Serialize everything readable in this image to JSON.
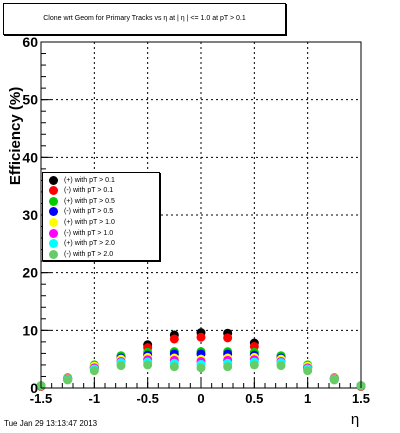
{
  "title": "Clone wrt Geom for Primary Tracks vs    η at |   η | <= 1.0 at pT > 0.1",
  "timestamp": "Tue Jan 29 13:13:47 2013",
  "chart_data": {
    "type": "scatter",
    "xlabel": "η",
    "ylabel": "Efficiency (%)",
    "xlim": [
      -1.5,
      1.5
    ],
    "ylim": [
      0,
      60
    ],
    "x_ticks": [
      -1.5,
      -1,
      -0.5,
      0,
      0.5,
      1,
      1.5
    ],
    "x_tick_labels": [
      "-1.5",
      "-1",
      "-0.5",
      "0",
      "0.5",
      "1",
      "1.5"
    ],
    "y_ticks": [
      0,
      10,
      20,
      30,
      40,
      50,
      60
    ],
    "y_tick_labels": [
      "0",
      "10",
      "20",
      "30",
      "40",
      "50",
      "60"
    ],
    "grid": true,
    "legend_position": "left-middle",
    "x": [
      -1.5,
      -1.25,
      -1.0,
      -0.75,
      -0.5,
      -0.25,
      0.0,
      0.25,
      0.5,
      0.75,
      1.0,
      1.25,
      1.5
    ],
    "series": [
      {
        "name": "(+) with pT > 0.1",
        "color": "#000000",
        "values": [
          0.3,
          1.6,
          3.6,
          5.4,
          7.5,
          9.2,
          9.6,
          9.5,
          7.8,
          5.5,
          3.6,
          1.6,
          0.3
        ]
      },
      {
        "name": "(-) with pT > 0.1",
        "color": "#ff0000",
        "values": [
          0.3,
          1.5,
          3.4,
          5.1,
          7.0,
          8.5,
          8.8,
          8.7,
          7.2,
          5.1,
          3.4,
          1.5,
          0.3
        ]
      },
      {
        "name": "(+) with pT > 0.5",
        "color": "#00cc00",
        "values": [
          0.4,
          1.8,
          4.0,
          5.6,
          6.2,
          6.3,
          6.3,
          6.3,
          6.2,
          5.6,
          4.0,
          1.8,
          0.4
        ]
      },
      {
        "name": "(-) with pT > 0.5",
        "color": "#0000ff",
        "values": [
          0.4,
          1.7,
          3.7,
          5.2,
          5.7,
          5.9,
          5.9,
          5.9,
          5.7,
          5.2,
          3.7,
          1.7,
          0.4
        ]
      },
      {
        "name": "(+) with pT > 1.0",
        "color": "#ffff00",
        "values": [
          0.4,
          1.7,
          3.8,
          5.0,
          5.3,
          5.2,
          5.0,
          5.2,
          5.3,
          5.0,
          3.8,
          1.7,
          0.4
        ]
      },
      {
        "name": "(-) with pT > 1.0",
        "color": "#ff00ff",
        "values": [
          0.4,
          1.6,
          3.5,
          4.6,
          4.9,
          4.8,
          4.6,
          4.8,
          4.9,
          4.6,
          3.5,
          1.6,
          0.4
        ]
      },
      {
        "name": "(+) with pT > 2.0",
        "color": "#00ffff",
        "values": [
          0.4,
          1.5,
          3.3,
          4.4,
          4.5,
          4.3,
          4.1,
          4.3,
          4.5,
          4.4,
          3.3,
          1.5,
          0.4
        ]
      },
      {
        "name": "(-) with pT > 2.0",
        "color": "#66cc66",
        "values": [
          0.4,
          1.4,
          3.0,
          3.9,
          4.0,
          3.7,
          3.5,
          3.7,
          4.0,
          3.9,
          3.0,
          1.4,
          0.4
        ]
      }
    ]
  }
}
